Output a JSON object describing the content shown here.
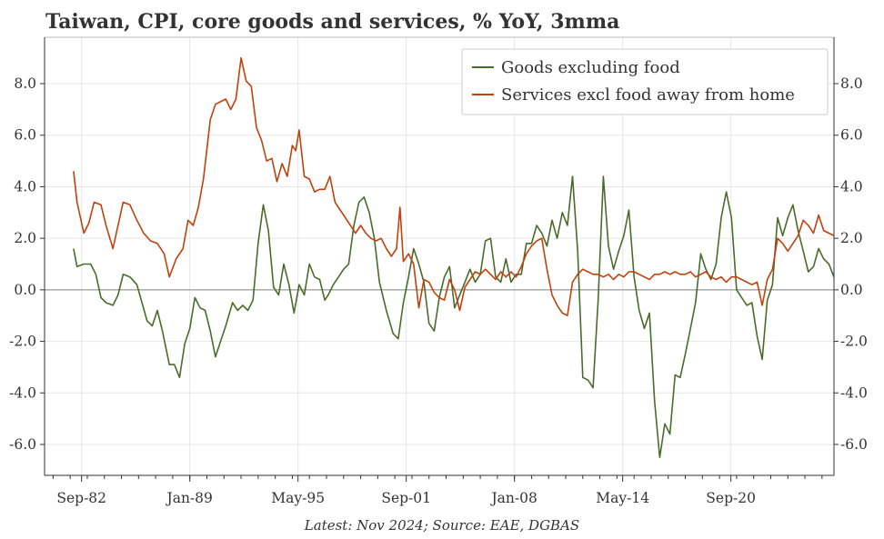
{
  "chart_data": {
    "type": "line",
    "title": "Taiwan, CPI, core goods and services, % YoY, 3mma",
    "caption": "Latest: Nov 2024; Source: EAE, DGBAS",
    "xlabel": "",
    "ylabel": "",
    "ylim": [
      -7.2,
      9.8
    ],
    "xlim": [
      1980.5,
      2026.7
    ],
    "x_ticks": [
      "Sep-82",
      "Jan-89",
      "May-95",
      "Sep-01",
      "Jan-08",
      "May-14",
      "Sep-20"
    ],
    "y_ticks": [
      "-6.0",
      "-4.0",
      "-2.0",
      "0.0",
      "2.0",
      "4.0",
      "6.0",
      "8.0"
    ],
    "legend_position": "top-right",
    "grid": true,
    "series": [
      {
        "name": "Goods excluding food",
        "color": "#4b6b2a",
        "points": [
          [
            1982.2,
            1.6
          ],
          [
            1982.4,
            0.9
          ],
          [
            1982.8,
            1.0
          ],
          [
            1983.2,
            1.0
          ],
          [
            1983.5,
            0.6
          ],
          [
            1983.8,
            -0.3
          ],
          [
            1984.1,
            -0.5
          ],
          [
            1984.5,
            -0.6
          ],
          [
            1984.8,
            -0.2
          ],
          [
            1985.1,
            0.6
          ],
          [
            1985.5,
            0.5
          ],
          [
            1985.9,
            0.2
          ],
          [
            1986.2,
            -0.5
          ],
          [
            1986.5,
            -1.2
          ],
          [
            1986.8,
            -1.4
          ],
          [
            1987.1,
            -0.8
          ],
          [
            1987.4,
            -1.6
          ],
          [
            1987.8,
            -2.9
          ],
          [
            1988.1,
            -2.9
          ],
          [
            1988.4,
            -3.4
          ],
          [
            1988.7,
            -2.1
          ],
          [
            1989.0,
            -1.5
          ],
          [
            1989.3,
            -0.3
          ],
          [
            1989.6,
            -0.7
          ],
          [
            1989.9,
            -0.8
          ],
          [
            1990.2,
            -1.6
          ],
          [
            1990.5,
            -2.6
          ],
          [
            1990.8,
            -2.0
          ],
          [
            1991.1,
            -1.4
          ],
          [
            1991.5,
            -0.5
          ],
          [
            1991.8,
            -0.8
          ],
          [
            1992.1,
            -0.6
          ],
          [
            1992.4,
            -0.8
          ],
          [
            1992.7,
            -0.4
          ],
          [
            1993.0,
            1.8
          ],
          [
            1993.3,
            3.3
          ],
          [
            1993.6,
            2.3
          ],
          [
            1993.9,
            0.1
          ],
          [
            1994.2,
            -0.2
          ],
          [
            1994.5,
            1.0
          ],
          [
            1994.8,
            0.2
          ],
          [
            1995.1,
            -0.9
          ],
          [
            1995.4,
            0.2
          ],
          [
            1995.7,
            -0.2
          ],
          [
            1996.0,
            1.0
          ],
          [
            1996.3,
            0.5
          ],
          [
            1996.6,
            0.4
          ],
          [
            1996.9,
            -0.4
          ],
          [
            1997.1,
            -0.2
          ],
          [
            1997.4,
            0.2
          ],
          [
            1997.7,
            0.5
          ],
          [
            1998.0,
            0.8
          ],
          [
            1998.3,
            1.0
          ],
          [
            1998.6,
            2.5
          ],
          [
            1998.9,
            3.4
          ],
          [
            1999.2,
            3.6
          ],
          [
            1999.5,
            3.0
          ],
          [
            1999.8,
            2.0
          ],
          [
            2000.1,
            0.3
          ],
          [
            2000.5,
            -0.8
          ],
          [
            2000.9,
            -1.7
          ],
          [
            2001.2,
            -1.9
          ],
          [
            2001.5,
            -0.5
          ],
          [
            2001.8,
            0.5
          ],
          [
            2002.1,
            1.6
          ],
          [
            2002.4,
            1.0
          ],
          [
            2002.7,
            0.3
          ],
          [
            2003.0,
            -1.3
          ],
          [
            2003.3,
            -1.6
          ],
          [
            2003.6,
            -0.3
          ],
          [
            2003.9,
            0.5
          ],
          [
            2004.2,
            0.9
          ],
          [
            2004.5,
            -0.7
          ],
          [
            2004.8,
            -0.2
          ],
          [
            2005.1,
            0.3
          ],
          [
            2005.4,
            0.8
          ],
          [
            2005.7,
            0.3
          ],
          [
            2006.0,
            0.6
          ],
          [
            2006.3,
            1.9
          ],
          [
            2006.6,
            2.0
          ],
          [
            2006.9,
            0.5
          ],
          [
            2007.2,
            0.3
          ],
          [
            2007.5,
            1.2
          ],
          [
            2007.8,
            0.3
          ],
          [
            2008.1,
            0.6
          ],
          [
            2008.4,
            0.6
          ],
          [
            2008.7,
            1.8
          ],
          [
            2009.0,
            1.8
          ],
          [
            2009.3,
            2.5
          ],
          [
            2009.6,
            2.2
          ],
          [
            2009.9,
            1.7
          ],
          [
            2010.2,
            2.7
          ],
          [
            2010.5,
            2.0
          ],
          [
            2010.8,
            3.0
          ],
          [
            2011.1,
            2.5
          ],
          [
            2011.4,
            4.4
          ],
          [
            2011.7,
            1.5
          ],
          [
            2012.0,
            -3.4
          ],
          [
            2012.3,
            -3.5
          ],
          [
            2012.6,
            -3.8
          ],
          [
            2012.9,
            -0.4
          ],
          [
            2013.2,
            4.4
          ],
          [
            2013.5,
            1.7
          ],
          [
            2013.8,
            0.8
          ],
          [
            2014.1,
            1.5
          ],
          [
            2014.4,
            2.1
          ],
          [
            2014.7,
            3.1
          ],
          [
            2015.0,
            0.5
          ],
          [
            2015.3,
            -0.8
          ],
          [
            2015.6,
            -1.5
          ],
          [
            2015.9,
            -0.9
          ],
          [
            2016.2,
            -4.3
          ],
          [
            2016.5,
            -6.5
          ],
          [
            2016.8,
            -5.2
          ],
          [
            2017.1,
            -5.6
          ],
          [
            2017.4,
            -3.3
          ],
          [
            2017.7,
            -3.4
          ],
          [
            2018.0,
            -2.5
          ],
          [
            2018.3,
            -1.5
          ],
          [
            2018.6,
            -0.5
          ],
          [
            2018.9,
            1.4
          ],
          [
            2019.2,
            0.8
          ],
          [
            2019.5,
            0.4
          ],
          [
            2019.8,
            1.0
          ],
          [
            2020.1,
            2.8
          ],
          [
            2020.4,
            3.8
          ],
          [
            2020.7,
            2.8
          ],
          [
            2021.0,
            0.0
          ],
          [
            2021.3,
            -0.3
          ],
          [
            2021.6,
            -0.6
          ],
          [
            2021.9,
            -0.5
          ],
          [
            2022.2,
            -1.8
          ],
          [
            2022.5,
            -2.7
          ],
          [
            2022.8,
            -0.4
          ],
          [
            2023.1,
            0.2
          ],
          [
            2023.4,
            2.8
          ],
          [
            2023.7,
            2.1
          ],
          [
            2024.0,
            2.8
          ],
          [
            2024.3,
            3.3
          ],
          [
            2024.6,
            2.3
          ],
          [
            2024.9,
            1.5
          ],
          [
            2025.2,
            0.7
          ],
          [
            2025.5,
            0.9
          ],
          [
            2025.8,
            1.6
          ],
          [
            2026.1,
            1.2
          ],
          [
            2026.4,
            1.0
          ],
          [
            2026.7,
            0.5
          ]
        ]
      },
      {
        "name": "Services excl food away from home",
        "color": "#c2410c",
        "points": [
          [
            1982.2,
            4.6
          ],
          [
            1982.4,
            3.4
          ],
          [
            1982.8,
            2.2
          ],
          [
            1983.1,
            2.6
          ],
          [
            1983.4,
            3.4
          ],
          [
            1983.8,
            3.3
          ],
          [
            1984.1,
            2.5
          ],
          [
            1984.5,
            1.6
          ],
          [
            1984.8,
            2.5
          ],
          [
            1985.1,
            3.4
          ],
          [
            1985.5,
            3.3
          ],
          [
            1985.9,
            2.7
          ],
          [
            1986.3,
            2.2
          ],
          [
            1986.7,
            1.9
          ],
          [
            1987.1,
            1.8
          ],
          [
            1987.5,
            1.4
          ],
          [
            1987.8,
            0.5
          ],
          [
            1988.2,
            1.2
          ],
          [
            1988.6,
            1.6
          ],
          [
            1988.9,
            2.7
          ],
          [
            1989.2,
            2.5
          ],
          [
            1989.5,
            3.2
          ],
          [
            1989.8,
            4.3
          ],
          [
            1990.2,
            6.6
          ],
          [
            1990.5,
            7.2
          ],
          [
            1990.8,
            7.3
          ],
          [
            1991.1,
            7.4
          ],
          [
            1991.4,
            7.0
          ],
          [
            1991.7,
            7.4
          ],
          [
            1992.0,
            9.0
          ],
          [
            1992.3,
            8.1
          ],
          [
            1992.6,
            7.9
          ],
          [
            1992.9,
            6.3
          ],
          [
            1993.2,
            5.8
          ],
          [
            1993.5,
            5.0
          ],
          [
            1993.8,
            5.1
          ],
          [
            1994.1,
            4.2
          ],
          [
            1994.4,
            4.9
          ],
          [
            1994.7,
            4.4
          ],
          [
            1995.0,
            5.6
          ],
          [
            1995.2,
            5.4
          ],
          [
            1995.4,
            6.2
          ],
          [
            1995.7,
            4.4
          ],
          [
            1996.0,
            4.3
          ],
          [
            1996.3,
            3.8
          ],
          [
            1996.6,
            3.9
          ],
          [
            1996.9,
            3.9
          ],
          [
            1997.2,
            4.4
          ],
          [
            1997.5,
            3.4
          ],
          [
            1997.8,
            3.1
          ],
          [
            1998.1,
            2.8
          ],
          [
            1998.4,
            2.5
          ],
          [
            1998.7,
            2.2
          ],
          [
            1999.0,
            2.5
          ],
          [
            1999.3,
            2.2
          ],
          [
            1999.6,
            2.0
          ],
          [
            1999.9,
            1.9
          ],
          [
            2000.2,
            2.0
          ],
          [
            2000.5,
            1.6
          ],
          [
            2000.8,
            1.3
          ],
          [
            2001.1,
            1.6
          ],
          [
            2001.3,
            3.2
          ],
          [
            2001.5,
            1.1
          ],
          [
            2001.8,
            1.4
          ],
          [
            2002.1,
            1.0
          ],
          [
            2002.4,
            -0.7
          ],
          [
            2002.7,
            0.4
          ],
          [
            2003.0,
            0.3
          ],
          [
            2003.3,
            -0.1
          ],
          [
            2003.6,
            -0.3
          ],
          [
            2003.9,
            -0.4
          ],
          [
            2004.2,
            0.4
          ],
          [
            2004.5,
            0.0
          ],
          [
            2004.8,
            -0.8
          ],
          [
            2005.1,
            0.1
          ],
          [
            2005.4,
            0.4
          ],
          [
            2005.7,
            0.7
          ],
          [
            2006.0,
            0.6
          ],
          [
            2006.3,
            0.8
          ],
          [
            2006.6,
            0.6
          ],
          [
            2006.9,
            0.4
          ],
          [
            2007.2,
            0.7
          ],
          [
            2007.5,
            0.5
          ],
          [
            2007.8,
            0.7
          ],
          [
            2008.1,
            0.5
          ],
          [
            2008.4,
            0.9
          ],
          [
            2008.7,
            1.4
          ],
          [
            2009.0,
            1.7
          ],
          [
            2009.3,
            1.9
          ],
          [
            2009.6,
            2.0
          ],
          [
            2009.9,
            0.8
          ],
          [
            2010.2,
            -0.2
          ],
          [
            2010.5,
            -0.6
          ],
          [
            2010.8,
            -0.9
          ],
          [
            2011.1,
            -1.0
          ],
          [
            2011.4,
            0.3
          ],
          [
            2011.7,
            0.6
          ],
          [
            2012.0,
            0.8
          ],
          [
            2012.3,
            0.7
          ],
          [
            2012.6,
            0.6
          ],
          [
            2012.9,
            0.6
          ],
          [
            2013.2,
            0.5
          ],
          [
            2013.5,
            0.6
          ],
          [
            2013.8,
            0.4
          ],
          [
            2014.1,
            0.6
          ],
          [
            2014.4,
            0.5
          ],
          [
            2014.7,
            0.7
          ],
          [
            2015.0,
            0.7
          ],
          [
            2015.3,
            0.6
          ],
          [
            2015.6,
            0.5
          ],
          [
            2015.9,
            0.4
          ],
          [
            2016.2,
            0.6
          ],
          [
            2016.5,
            0.6
          ],
          [
            2016.8,
            0.7
          ],
          [
            2017.1,
            0.6
          ],
          [
            2017.4,
            0.7
          ],
          [
            2017.7,
            0.6
          ],
          [
            2018.0,
            0.6
          ],
          [
            2018.3,
            0.7
          ],
          [
            2018.6,
            0.5
          ],
          [
            2018.9,
            0.6
          ],
          [
            2019.2,
            0.7
          ],
          [
            2019.5,
            0.5
          ],
          [
            2019.8,
            0.4
          ],
          [
            2020.1,
            0.5
          ],
          [
            2020.4,
            0.3
          ],
          [
            2020.7,
            0.5
          ],
          [
            2021.0,
            0.5
          ],
          [
            2021.3,
            0.4
          ],
          [
            2021.6,
            0.3
          ],
          [
            2021.9,
            0.2
          ],
          [
            2022.2,
            0.3
          ],
          [
            2022.5,
            -0.6
          ],
          [
            2022.8,
            0.4
          ],
          [
            2023.1,
            0.8
          ],
          [
            2023.4,
            2.0
          ],
          [
            2023.7,
            1.8
          ],
          [
            2024.0,
            1.5
          ],
          [
            2024.3,
            1.8
          ],
          [
            2024.6,
            2.1
          ],
          [
            2024.9,
            2.7
          ],
          [
            2025.2,
            2.5
          ],
          [
            2025.5,
            2.2
          ],
          [
            2025.8,
            2.9
          ],
          [
            2026.1,
            2.3
          ],
          [
            2026.4,
            2.2
          ],
          [
            2026.7,
            2.1
          ]
        ]
      }
    ]
  }
}
